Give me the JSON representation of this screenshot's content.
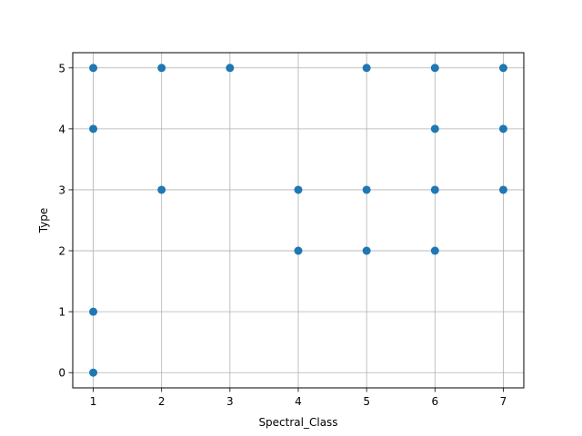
{
  "chart_data": {
    "type": "scatter",
    "title": "",
    "xlabel": "Spectral_Class",
    "ylabel": "Type",
    "xlim": [
      0.7,
      7.3
    ],
    "ylim": [
      -0.25,
      5.25
    ],
    "xticks": [
      1,
      2,
      3,
      4,
      5,
      6,
      7
    ],
    "yticks": [
      0,
      1,
      2,
      3,
      4,
      5
    ],
    "grid": true,
    "legend": "none",
    "colors": {
      "marker": "#1f77b4",
      "grid": "#b0b0b0",
      "axis": "#000000"
    },
    "points": [
      {
        "x": 1,
        "y": 0
      },
      {
        "x": 1,
        "y": 1
      },
      {
        "x": 1,
        "y": 4
      },
      {
        "x": 1,
        "y": 5
      },
      {
        "x": 2,
        "y": 3
      },
      {
        "x": 2,
        "y": 5
      },
      {
        "x": 3,
        "y": 5
      },
      {
        "x": 4,
        "y": 2
      },
      {
        "x": 4,
        "y": 3
      },
      {
        "x": 5,
        "y": 2
      },
      {
        "x": 5,
        "y": 3
      },
      {
        "x": 5,
        "y": 5
      },
      {
        "x": 6,
        "y": 2
      },
      {
        "x": 6,
        "y": 3
      },
      {
        "x": 6,
        "y": 4
      },
      {
        "x": 6,
        "y": 5
      },
      {
        "x": 7,
        "y": 3
      },
      {
        "x": 7,
        "y": 4
      },
      {
        "x": 7,
        "y": 5
      }
    ]
  }
}
